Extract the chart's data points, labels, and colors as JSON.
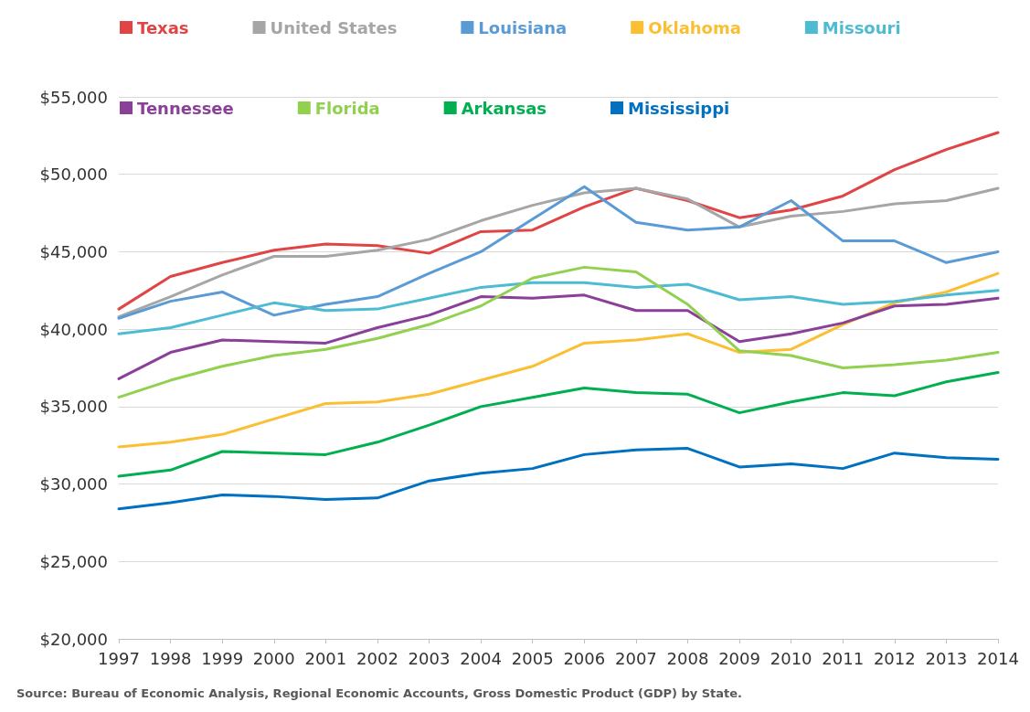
{
  "chart_data": {
    "type": "line",
    "categories": [
      "1997",
      "1998",
      "1999",
      "2000",
      "2001",
      "2002",
      "2003",
      "2004",
      "2005",
      "2006",
      "2007",
      "2008",
      "2009",
      "2010",
      "2011",
      "2012",
      "2013",
      "2014"
    ],
    "series": [
      {
        "name": "Texas",
        "color": "#e04444",
        "values": [
          41300,
          43400,
          44300,
          45100,
          45500,
          45400,
          44900,
          46300,
          46400,
          47900,
          49100,
          48300,
          47200,
          47700,
          48600,
          50300,
          51600,
          52700
        ]
      },
      {
        "name": "United States",
        "color": "#a6a6a6",
        "values": [
          40800,
          42100,
          43500,
          44700,
          44700,
          45100,
          45800,
          47000,
          48000,
          48800,
          49100,
          48400,
          46600,
          47300,
          47600,
          48100,
          48300,
          49100
        ]
      },
      {
        "name": "Louisiana",
        "color": "#5b9bd5",
        "values": [
          40700,
          41800,
          42400,
          40900,
          41600,
          42100,
          43600,
          45000,
          47100,
          49200,
          46900,
          46400,
          46600,
          48300,
          45700,
          45700,
          44300,
          45000
        ]
      },
      {
        "name": "Oklahoma",
        "color": "#fbbf34",
        "values": [
          32400,
          32700,
          33200,
          34200,
          35200,
          35300,
          35800,
          36700,
          37600,
          39100,
          39300,
          39700,
          38500,
          38700,
          40300,
          41700,
          42400,
          43600
        ]
      },
      {
        "name": "Missouri",
        "color": "#4dbcd3",
        "values": [
          39700,
          40100,
          40900,
          41700,
          41200,
          41300,
          42000,
          42700,
          43000,
          43000,
          42700,
          42900,
          41900,
          42100,
          41600,
          41800,
          42200,
          42500
        ]
      },
      {
        "name": "Tennessee",
        "color": "#8a4099",
        "values": [
          36800,
          38500,
          39300,
          39200,
          39100,
          40100,
          40900,
          42100,
          42000,
          42200,
          41200,
          41200,
          39200,
          39700,
          40400,
          41500,
          41600,
          42000
        ]
      },
      {
        "name": "Florida",
        "color": "#92d050",
        "values": [
          35600,
          36700,
          37600,
          38300,
          38700,
          39400,
          40300,
          41500,
          43300,
          44000,
          43700,
          41600,
          38600,
          38300,
          37500,
          37700,
          38000,
          38500
        ]
      },
      {
        "name": "Arkansas",
        "color": "#00b050",
        "values": [
          30500,
          30900,
          32100,
          32000,
          31900,
          32700,
          33800,
          35000,
          35600,
          36200,
          35900,
          35800,
          34600,
          35300,
          35900,
          35700,
          36600,
          37200
        ]
      },
      {
        "name": "Mississippi",
        "color": "#0070c0",
        "values": [
          28400,
          28800,
          29300,
          29200,
          29000,
          29100,
          30200,
          30700,
          31000,
          31900,
          32200,
          32300,
          31100,
          31300,
          31000,
          32000,
          31700,
          31600
        ]
      }
    ],
    "ylim": [
      20000,
      55000
    ],
    "yticks": [
      {
        "value": 20000,
        "label": "$20,000"
      },
      {
        "value": 25000,
        "label": "$25,000"
      },
      {
        "value": 30000,
        "label": "$30,000"
      },
      {
        "value": 35000,
        "label": "$35,000"
      },
      {
        "value": 40000,
        "label": "$40,000"
      },
      {
        "value": 45000,
        "label": "$45,000"
      },
      {
        "value": 50000,
        "label": "$50,000"
      },
      {
        "value": 55000,
        "label": "$55,000"
      }
    ],
    "grid": "y",
    "legend": "top left",
    "marker": "none",
    "line_style": "solid",
    "annotations": [
      "Source: Bureau of Economic Analysis, Regional Economic Accounts, Gross Domestic Product (GDP) by State."
    ]
  }
}
